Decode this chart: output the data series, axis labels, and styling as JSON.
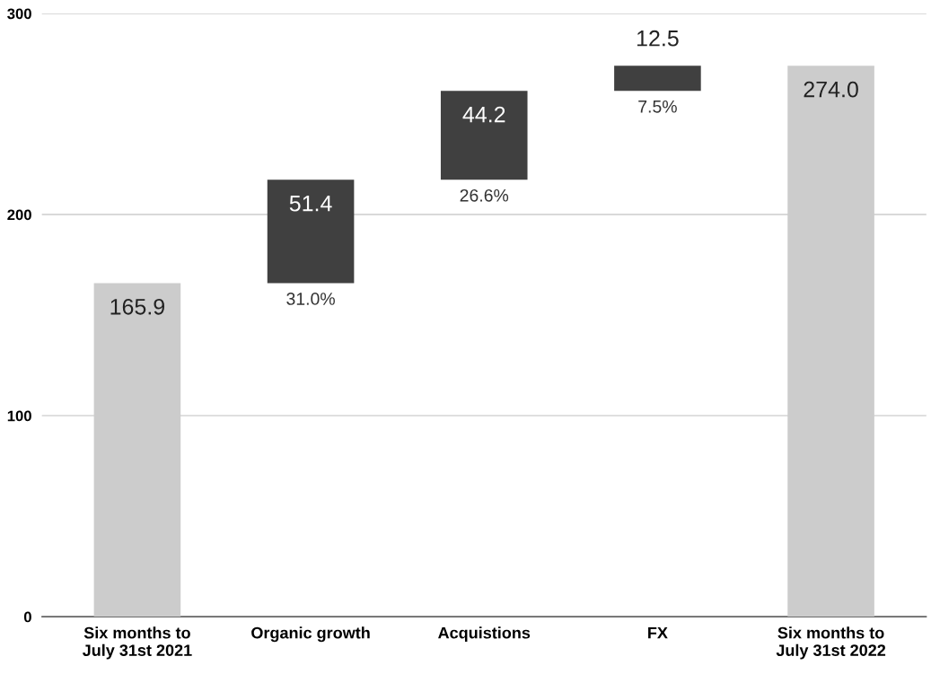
{
  "chart_data": {
    "type": "bar",
    "categories": [
      "Six months to\nJuly 31st 2021",
      "Organic growth",
      "Acquistions",
      "FX",
      "Six months to\nJuly 31st 2022"
    ],
    "values": [
      165.9,
      51.4,
      44.2,
      12.5,
      274.0
    ],
    "base": [
      0,
      165.9,
      217.3,
      261.5,
      0
    ],
    "colors": [
      "#cccccc",
      "#404040",
      "#404040",
      "#404040",
      "#cccccc"
    ],
    "value_labels": [
      "165.9",
      "51.4",
      "44.2",
      "12.5",
      "274.0"
    ],
    "annotations": [
      {
        "text": "31.0%",
        "x": "Organic growth",
        "y": 165.9
      },
      {
        "text": "26.6%",
        "x": "Acquistions",
        "y": 217.3
      },
      {
        "text": "7.5%",
        "x": "FX",
        "y": 261.5
      }
    ],
    "ylim": [
      0,
      300
    ],
    "yticks": [
      0,
      100,
      200,
      300
    ],
    "grid": "y"
  }
}
